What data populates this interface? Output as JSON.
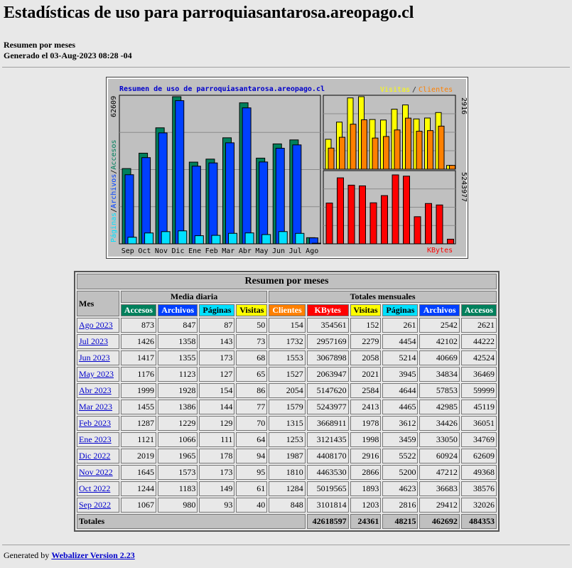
{
  "page": {
    "title": "Estadísticas de uso para parroquiasantarosa.areopago.cl",
    "subtitle": "Resumen por meses",
    "generated": "Generado el 03-Aug-2023 08:28 -04"
  },
  "chart_data": {
    "type": "bar",
    "title": "Resumen de uso de parroquiasantarosa.areopago.cl",
    "months": [
      "Sep",
      "Oct",
      "Nov",
      "Dic",
      "Ene",
      "Feb",
      "Mar",
      "Abr",
      "May",
      "Jun",
      "Jul",
      "Ago"
    ],
    "left_axis": {
      "max_label": "62609",
      "labels": [
        "Páginas",
        "Archivos",
        "Accesos"
      ]
    },
    "right_top": {
      "max_label": "2916",
      "legend": [
        "Visitas",
        "Clientes"
      ]
    },
    "right_bottom": {
      "max_label": "5243977",
      "legend": "KBytes"
    },
    "series": [
      {
        "name": "Accesos",
        "values": [
          32026,
          38576,
          49368,
          62609,
          34769,
          36051,
          45119,
          59999,
          36469,
          42524,
          44222,
          2621
        ]
      },
      {
        "name": "Archivos",
        "values": [
          29412,
          36683,
          47212,
          60924,
          33050,
          34426,
          42985,
          57853,
          34834,
          40669,
          42102,
          2542
        ]
      },
      {
        "name": "Páginas",
        "values": [
          2816,
          4623,
          5200,
          5522,
          3459,
          3612,
          4465,
          4644,
          3945,
          5214,
          4454,
          261
        ]
      },
      {
        "name": "Visitas",
        "values": [
          1203,
          1893,
          2866,
          2916,
          1998,
          1978,
          2413,
          2584,
          2021,
          2058,
          2279,
          152
        ]
      },
      {
        "name": "Clientes",
        "values": [
          848,
          1284,
          1810,
          1987,
          1253,
          1315,
          1579,
          2054,
          1527,
          1553,
          1732,
          154
        ]
      },
      {
        "name": "KBytes",
        "values": [
          3101814,
          5019565,
          4463530,
          4408170,
          3121435,
          3668911,
          5243977,
          5147620,
          2063947,
          3067898,
          2957169,
          354561
        ]
      }
    ],
    "colors": {
      "Accesos": "#00805c",
      "Archivos": "#0040ff",
      "Páginas": "#00e0ff",
      "Visitas": "#ffff00",
      "Clientes": "#ff8000",
      "KBytes": "#ff0000"
    }
  },
  "table": {
    "caption": "Resumen por meses",
    "mes_label": "Mes",
    "media_label": "Media diaria",
    "totales_label": "Totales mensuales",
    "daily_cols": [
      "Accesos",
      "Archivos",
      "Páginas",
      "Visitas"
    ],
    "monthly_cols": [
      "Clientes",
      "KBytes",
      "Visitas",
      "Páginas",
      "Archivos",
      "Accesos"
    ],
    "rows": [
      {
        "mes": "Ago 2023",
        "d": [
          "873",
          "847",
          "87",
          "50"
        ],
        "m": [
          "154",
          "354561",
          "152",
          "261",
          "2542",
          "2621"
        ]
      },
      {
        "mes": "Jul 2023",
        "d": [
          "1426",
          "1358",
          "143",
          "73"
        ],
        "m": [
          "1732",
          "2957169",
          "2279",
          "4454",
          "42102",
          "44222"
        ]
      },
      {
        "mes": "Jun 2023",
        "d": [
          "1417",
          "1355",
          "173",
          "68"
        ],
        "m": [
          "1553",
          "3067898",
          "2058",
          "5214",
          "40669",
          "42524"
        ]
      },
      {
        "mes": "May 2023",
        "d": [
          "1176",
          "1123",
          "127",
          "65"
        ],
        "m": [
          "1527",
          "2063947",
          "2021",
          "3945",
          "34834",
          "36469"
        ]
      },
      {
        "mes": "Abr 2023",
        "d": [
          "1999",
          "1928",
          "154",
          "86"
        ],
        "m": [
          "2054",
          "5147620",
          "2584",
          "4644",
          "57853",
          "59999"
        ]
      },
      {
        "mes": "Mar 2023",
        "d": [
          "1455",
          "1386",
          "144",
          "77"
        ],
        "m": [
          "1579",
          "5243977",
          "2413",
          "4465",
          "42985",
          "45119"
        ]
      },
      {
        "mes": "Feb 2023",
        "d": [
          "1287",
          "1229",
          "129",
          "70"
        ],
        "m": [
          "1315",
          "3668911",
          "1978",
          "3612",
          "34426",
          "36051"
        ]
      },
      {
        "mes": "Ene 2023",
        "d": [
          "1121",
          "1066",
          "111",
          "64"
        ],
        "m": [
          "1253",
          "3121435",
          "1998",
          "3459",
          "33050",
          "34769"
        ]
      },
      {
        "mes": "Dic 2022",
        "d": [
          "2019",
          "1965",
          "178",
          "94"
        ],
        "m": [
          "1987",
          "4408170",
          "2916",
          "5522",
          "60924",
          "62609"
        ]
      },
      {
        "mes": "Nov 2022",
        "d": [
          "1645",
          "1573",
          "173",
          "95"
        ],
        "m": [
          "1810",
          "4463530",
          "2866",
          "5200",
          "47212",
          "49368"
        ]
      },
      {
        "mes": "Oct 2022",
        "d": [
          "1244",
          "1183",
          "149",
          "61"
        ],
        "m": [
          "1284",
          "5019565",
          "1893",
          "4623",
          "36683",
          "38576"
        ]
      },
      {
        "mes": "Sep 2022",
        "d": [
          "1067",
          "980",
          "93",
          "40"
        ],
        "m": [
          "848",
          "3101814",
          "1203",
          "2816",
          "29412",
          "32026"
        ]
      }
    ],
    "totals": {
      "label": "Totales",
      "values": [
        "42618597",
        "24361",
        "48215",
        "462692",
        "484353"
      ]
    }
  },
  "footer": {
    "prefix": "Generated by ",
    "link": "Webalizer Version 2.23"
  }
}
